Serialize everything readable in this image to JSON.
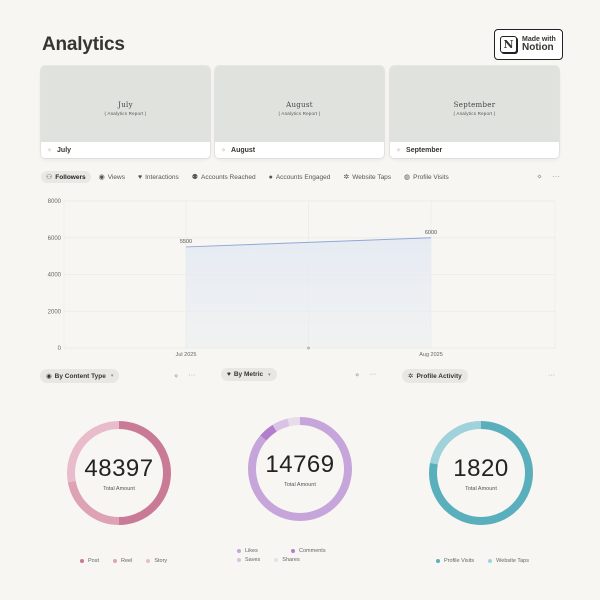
{
  "page": {
    "title": "Analytics"
  },
  "badge": {
    "small": "Made with",
    "big": "Notion",
    "logo": "N"
  },
  "months": [
    {
      "title": "July",
      "subtitle": "( Analytics Report )",
      "label": "July"
    },
    {
      "title": "August",
      "subtitle": "( Analytics Report )",
      "label": "August"
    },
    {
      "title": "September",
      "subtitle": "( Analytics Report )",
      "label": "September"
    }
  ],
  "tabs": [
    {
      "label": "Followers",
      "icon": "followers-icon",
      "glyph": "⚇",
      "active": true
    },
    {
      "label": "Views",
      "icon": "eye-icon",
      "glyph": "◉",
      "active": false
    },
    {
      "label": "Interactions",
      "icon": "heart-icon",
      "glyph": "♥",
      "active": false
    },
    {
      "label": "Accounts Reached",
      "icon": "people-icon",
      "glyph": "⚉",
      "active": false
    },
    {
      "label": "Accounts Engaged",
      "icon": "chat-icon",
      "glyph": "●",
      "active": false
    },
    {
      "label": "Website Taps",
      "icon": "tap-icon",
      "glyph": "✲",
      "active": false
    },
    {
      "label": "Profile Visits",
      "icon": "profile-icon",
      "glyph": "◍",
      "active": false
    }
  ],
  "chart_data": {
    "type": "area",
    "x": [
      "Jul 2025",
      "Aug 2025"
    ],
    "series": [
      {
        "values": [
          5500,
          6000
        ]
      }
    ],
    "data_labels": [
      "5500",
      "6000"
    ],
    "yticks": [
      "0",
      "2000",
      "4000",
      "6000",
      "8000"
    ],
    "ylim": [
      0,
      8000
    ],
    "grid": true,
    "colors": {
      "line": "#8fa8d8",
      "fill": "#e6ebf3"
    }
  },
  "widgets": [
    {
      "button": "By Content Type",
      "icon": "eye-icon",
      "total": "48397",
      "total_label": "Total Amount",
      "legend": [
        {
          "label": "Post",
          "color": "#c97a96"
        },
        {
          "label": "Reel",
          "color": "#dda3b4"
        },
        {
          "label": "Story",
          "color": "#e9bccb"
        }
      ],
      "chart_data": {
        "type": "pie",
        "labels": [
          "Post",
          "Reel",
          "Story"
        ],
        "values": [
          0.5,
          0.22,
          0.28
        ],
        "colors": [
          "#c97a96",
          "#dda3b4",
          "#e9bccb"
        ]
      }
    },
    {
      "button": "By Metric",
      "icon": "heart-icon",
      "total": "14769",
      "total_label": "Total Amount",
      "legend": [
        {
          "label": "Likes",
          "color": "#c6a5db"
        },
        {
          "label": "Comments",
          "color": "#b27fcc"
        },
        {
          "label": "Saves",
          "color": "#d9c2e6"
        },
        {
          "label": "Shares",
          "color": "#e8dcec"
        }
      ],
      "chart_data": {
        "type": "pie",
        "labels": [
          "Likes",
          "Comments",
          "Saves",
          "Shares"
        ],
        "values": [
          0.86,
          0.05,
          0.05,
          0.04
        ],
        "colors": [
          "#c6a5db",
          "#b27fcc",
          "#d9c2e6",
          "#e8dcec"
        ]
      }
    },
    {
      "button": "Profile Activity",
      "icon": "tap-icon",
      "total": "1820",
      "total_label": "Total Amount",
      "legend": [
        {
          "label": "Profile Visits",
          "color": "#5aafbd"
        },
        {
          "label": "Website Taps",
          "color": "#9fd2da"
        }
      ],
      "chart_data": {
        "type": "pie",
        "labels": [
          "Profile Visits",
          "Website Taps"
        ],
        "values": [
          0.78,
          0.22
        ],
        "colors": [
          "#5aafbd",
          "#9fd2da"
        ]
      }
    }
  ],
  "menu_glyphs": {
    "filter": "⋄",
    "more": "···"
  }
}
